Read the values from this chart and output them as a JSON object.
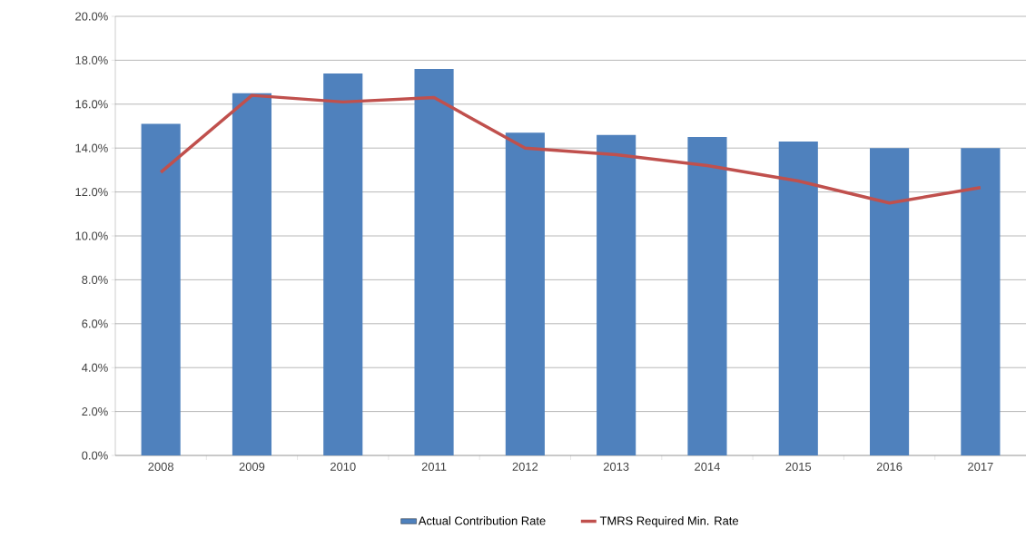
{
  "chart_data": {
    "type": "bar",
    "categories": [
      "2008",
      "2009",
      "2010",
      "2011",
      "2012",
      "2013",
      "2014",
      "2015",
      "2016",
      "2017"
    ],
    "series": [
      {
        "name": "Actual Contribution Rate",
        "color": "#4f81bd",
        "values": [
          15.1,
          16.5,
          17.4,
          17.6,
          14.7,
          14.6,
          14.5,
          14.3,
          14.0,
          14.0
        ]
      },
      {
        "name": "TMRS Required Min. Rate",
        "type": "line",
        "color": "#c0504d",
        "values": [
          12.9,
          16.4,
          16.1,
          16.3,
          14.0,
          13.7,
          13.2,
          12.5,
          11.5,
          12.2
        ]
      }
    ],
    "ylim": [
      0,
      20
    ],
    "yticks": [
      {
        "value": 0,
        "label": "0.0%"
      },
      {
        "value": 2,
        "label": "2.0%"
      },
      {
        "value": 4,
        "label": "4.0%"
      },
      {
        "value": 6,
        "label": "6.0%"
      },
      {
        "value": 8,
        "label": "8.0%"
      },
      {
        "value": 10,
        "label": "10.0%"
      },
      {
        "value": 12,
        "label": "12.0%"
      },
      {
        "value": 14,
        "label": "14.0%"
      },
      {
        "value": 16,
        "label": "16.0%"
      },
      {
        "value": 18,
        "label": "18.0%"
      },
      {
        "value": 20,
        "label": "20.0%"
      }
    ],
    "grid": "y",
    "legend": "bottom",
    "marker": "none",
    "line_style": "solid"
  }
}
